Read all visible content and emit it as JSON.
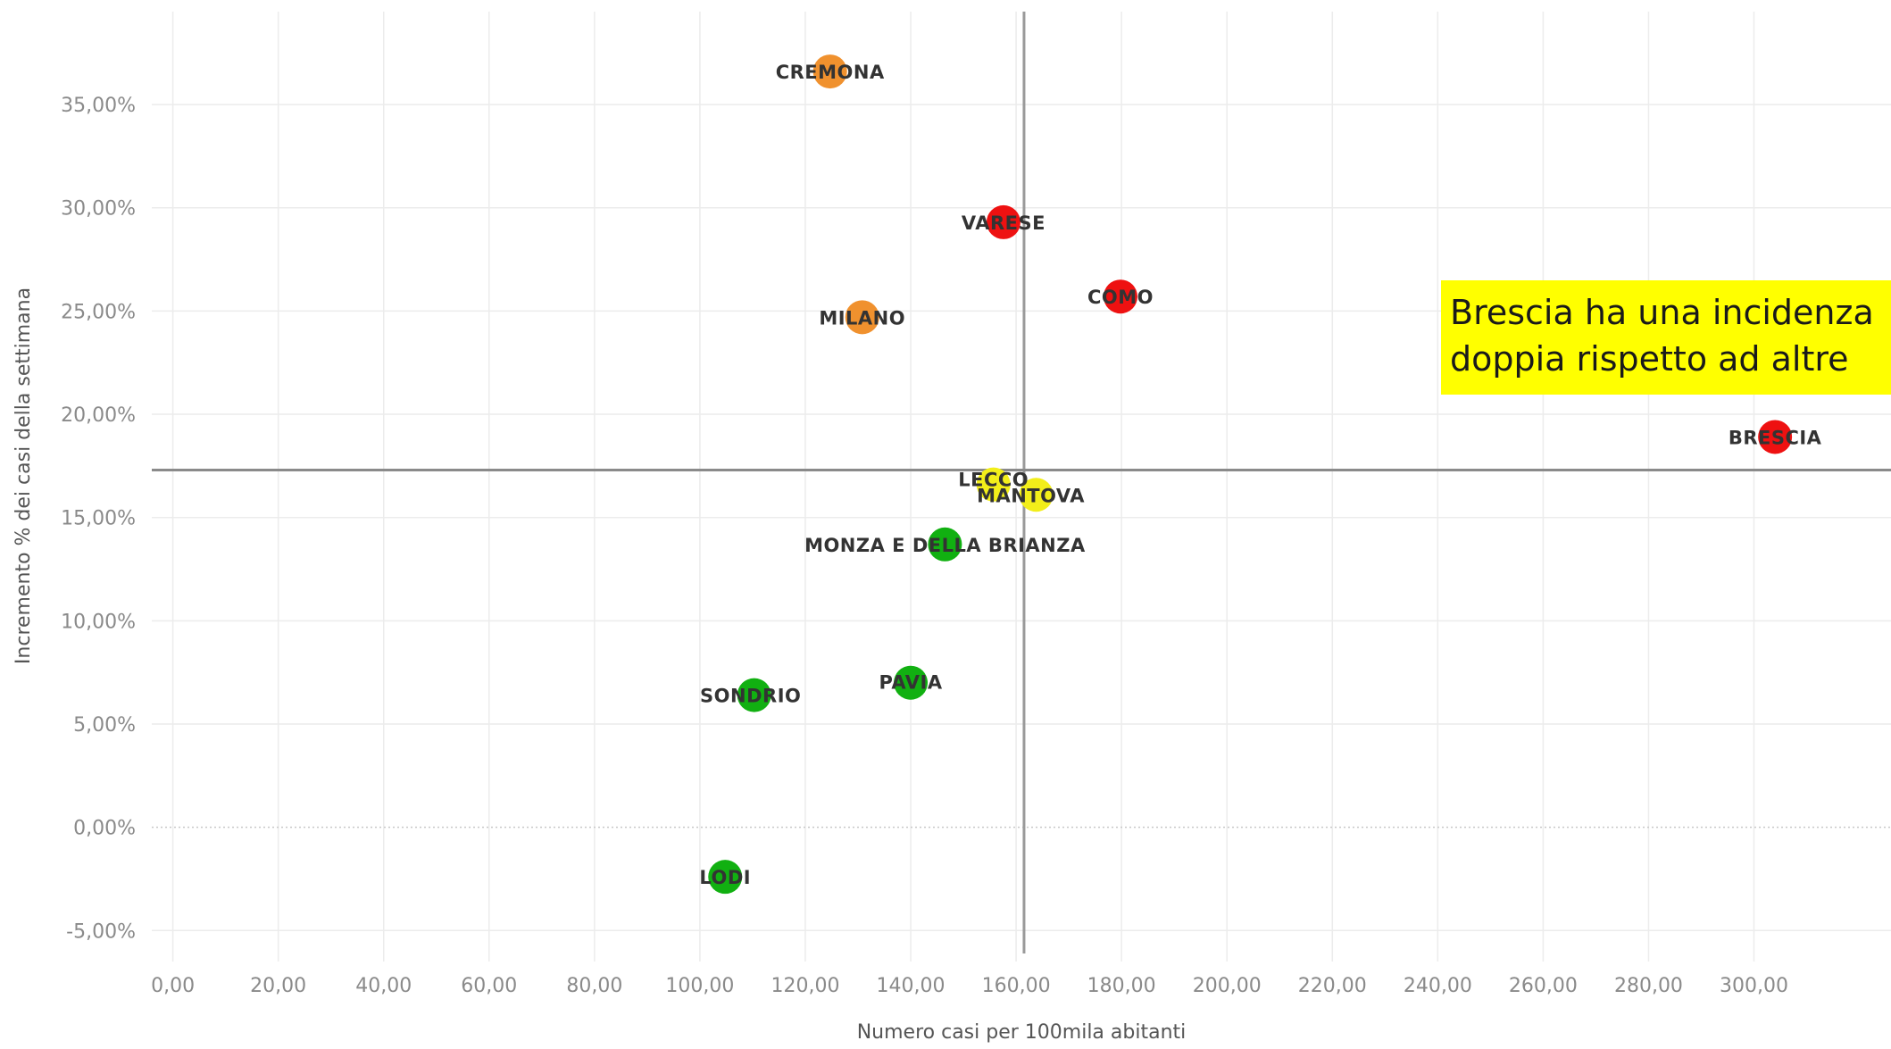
{
  "chart_data": {
    "type": "scatter",
    "xlabel": "Numero casi per 100mila abitanti",
    "ylabel": "Incremento % dei casi della settimana",
    "xlim": [
      -4,
      326
    ],
    "ylim": [
      -6.5,
      39.5
    ],
    "x_ticks": [
      "0,00",
      "20,00",
      "40,00",
      "60,00",
      "80,00",
      "100,00",
      "120,00",
      "140,00",
      "160,00",
      "180,00",
      "200,00",
      "220,00",
      "240,00",
      "260,00",
      "280,00",
      "300,00"
    ],
    "x_tick_values": [
      0,
      20,
      40,
      60,
      80,
      100,
      120,
      140,
      160,
      180,
      200,
      220,
      240,
      260,
      280,
      300
    ],
    "y_ticks": [
      "-5,00%",
      "0,00%",
      "5,00%",
      "10,00%",
      "15,00%",
      "20,00%",
      "25,00%",
      "30,00%",
      "35,00%"
    ],
    "y_tick_values": [
      -5,
      0,
      5,
      10,
      15,
      20,
      25,
      30,
      35
    ],
    "reference_lines": {
      "x": 161.5,
      "y": 17.3
    },
    "grid": true,
    "points": [
      {
        "name": "CREMONA",
        "x": 124.7,
        "y": 36.6,
        "color": "#f0912e"
      },
      {
        "name": "VARESE",
        "x": 157.6,
        "y": 29.3,
        "color": "#ee1111"
      },
      {
        "name": "COMO",
        "x": 179.8,
        "y": 25.7,
        "color": "#ee1111"
      },
      {
        "name": "MILANO",
        "x": 130.8,
        "y": 24.7,
        "color": "#f0912e"
      },
      {
        "name": "BRESCIA",
        "x": 304.0,
        "y": 18.9,
        "color": "#ee1111"
      },
      {
        "name": "LECCO",
        "x": 155.7,
        "y": 16.6,
        "color": "#f2ee1a"
      },
      {
        "name": "MANTOVA",
        "x": 163.8,
        "y": 16.1,
        "color": "#f2ee1a"
      },
      {
        "name": "MONZA E DELLA BRIANZA",
        "x": 146.5,
        "y": 13.7,
        "color": "#11b011"
      },
      {
        "name": "PAVIA",
        "x": 140.0,
        "y": 7.0,
        "color": "#11b011"
      },
      {
        "name": "SONDRIO",
        "x": 110.3,
        "y": 6.4,
        "color": "#11b011"
      },
      {
        "name": "LODI",
        "x": 104.8,
        "y": -2.4,
        "color": "#11b011"
      }
    ]
  },
  "annotation": {
    "line1": "Brescia ha una incidenza",
    "line2": "doppia rispetto ad altre",
    "background": "#ffff00"
  }
}
